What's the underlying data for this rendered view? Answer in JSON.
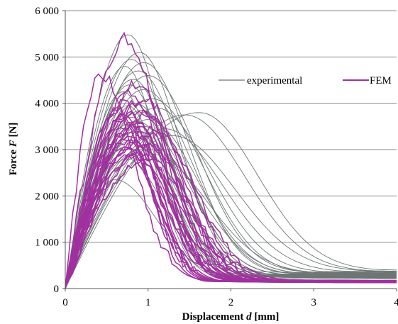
{
  "chart_data": {
    "type": "line",
    "title": "",
    "xlabel": "Displacement d [mm]",
    "ylabel": "Force F [N]",
    "xlabel_parts": {
      "pre": "Displacement ",
      "var": "d",
      "post": " [mm]"
    },
    "ylabel_parts": {
      "pre": "Force ",
      "var": "F",
      "post": " [N]"
    },
    "xlim": [
      0,
      4
    ],
    "ylim": [
      0,
      6000
    ],
    "xticks": [
      0,
      1,
      2,
      3,
      4
    ],
    "xtick_labels": [
      "0",
      "1",
      "2",
      "3",
      "4"
    ],
    "yticks": [
      0,
      1000,
      2000,
      3000,
      4000,
      5000,
      6000
    ],
    "ytick_labels": [
      "0",
      "1 000",
      "2 000",
      "3 000",
      "4 000",
      "5 000",
      "6 000"
    ],
    "grid": "horizontal",
    "legend_position": "top-right",
    "colors": {
      "experimental": "#6e7575",
      "FEM": "#a0309f"
    },
    "series": [
      {
        "name": "experimental",
        "peak_forces": [
          5480,
          5100,
          4950,
          4880,
          4800,
          4700,
          4600,
          4520,
          4400,
          4300,
          4250,
          4100,
          4000,
          3950,
          3900,
          3850,
          3800,
          3750,
          3700,
          3650,
          3600,
          3550,
          3500,
          3450,
          3400,
          3300,
          3200,
          3100,
          3000,
          2900,
          2800,
          2350
        ],
        "peak_displacements": [
          0.76,
          0.9,
          0.8,
          0.95,
          0.72,
          0.88,
          1.0,
          0.82,
          0.78,
          0.95,
          0.7,
          1.05,
          0.85,
          0.75,
          1.1,
          0.92,
          1.62,
          1.45,
          0.8,
          1.0,
          0.88,
          0.76,
          0.95,
          1.2,
          0.85,
          1.3,
          0.8,
          1.0,
          0.9,
          1.05,
          0.75,
          0.6
        ],
        "widths": [
          0.42,
          0.48,
          0.44,
          0.55,
          0.4,
          0.52,
          0.6,
          0.45,
          0.42,
          0.58,
          0.38,
          0.62,
          0.5,
          0.4,
          0.65,
          0.55,
          0.7,
          0.72,
          0.45,
          0.6,
          0.5,
          0.44,
          0.55,
          0.7,
          0.48,
          0.75,
          0.46,
          0.62,
          0.54,
          0.66,
          0.44,
          0.5
        ],
        "residual_at_4mm": [
          320,
          280,
          260,
          300,
          240,
          270,
          330,
          250,
          230,
          290,
          220,
          310,
          260,
          230,
          340,
          280,
          380,
          360,
          240,
          300,
          260,
          230,
          280,
          350,
          250,
          360,
          240,
          300,
          270,
          320,
          220,
          200
        ]
      },
      {
        "name": "FEM",
        "peak_forces": [
          5380,
          4620,
          4400,
          4200,
          4100,
          4000,
          3950,
          3900,
          3850,
          3800,
          3750,
          3700,
          3650,
          3600,
          3550,
          3500,
          3450,
          3400,
          3350,
          3300,
          3250,
          3200,
          3150,
          3100,
          3050,
          3000,
          2950,
          2900,
          2850,
          2800
        ],
        "peak_displacements": [
          0.75,
          0.42,
          0.85,
          0.8,
          0.95,
          0.7,
          0.88,
          0.65,
          0.92,
          0.78,
          1.0,
          0.72,
          0.85,
          0.68,
          0.9,
          0.8,
          1.05,
          0.75,
          0.82,
          0.7,
          0.95,
          0.78,
          0.86,
          0.72,
          1.0,
          0.8,
          0.9,
          0.74,
          0.84,
          0.98
        ],
        "widths": [
          0.38,
          0.4,
          0.42,
          0.4,
          0.46,
          0.36,
          0.44,
          0.34,
          0.46,
          0.4,
          0.5,
          0.36,
          0.42,
          0.35,
          0.45,
          0.4,
          0.52,
          0.38,
          0.42,
          0.36,
          0.48,
          0.4,
          0.44,
          0.37,
          0.5,
          0.41,
          0.46,
          0.38,
          0.43,
          0.49
        ],
        "residual_at_4mm": [
          170,
          150,
          160,
          140,
          150,
          130,
          145,
          125,
          155,
          140,
          160,
          130,
          145,
          125,
          150,
          135,
          165,
          130,
          140,
          125,
          150,
          135,
          145,
          130,
          155,
          140,
          150,
          128,
          142,
          152
        ]
      }
    ]
  }
}
